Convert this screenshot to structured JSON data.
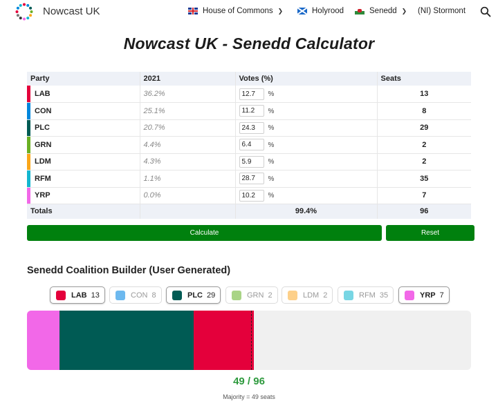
{
  "header": {
    "brand": "Nowcast UK",
    "nav": [
      {
        "label": "House of Commons",
        "flag": "uk-flag",
        "has_dropdown": true
      },
      {
        "label": "Holyrood",
        "flag": "scotland-flag",
        "has_dropdown": false
      },
      {
        "label": "Senedd",
        "flag": "wales-flag",
        "has_dropdown": true
      },
      {
        "label": "(NI) Stormont",
        "flag": "",
        "has_dropdown": false
      }
    ],
    "search_icon": "search-icon"
  },
  "title": "Nowcast UK - Senedd Calculator",
  "table": {
    "headers": {
      "party": "Party",
      "prev": "2021",
      "votes": "Votes (%)",
      "seats": "Seats"
    },
    "rows": [
      {
        "party": "LAB",
        "color": "#e4003b",
        "prev": "36.2%",
        "votes": "12.7",
        "pct": "%",
        "seats": "13"
      },
      {
        "party": "CON",
        "color": "#0087dc",
        "prev": "25.1%",
        "votes": "11.2",
        "pct": "%",
        "seats": "8"
      },
      {
        "party": "PLC",
        "color": "#005b54",
        "prev": "20.7%",
        "votes": "24.3",
        "pct": "%",
        "seats": "29"
      },
      {
        "party": "GRN",
        "color": "#6ab023",
        "prev": "4.4%",
        "votes": "6.4",
        "pct": "%",
        "seats": "2"
      },
      {
        "party": "LDM",
        "color": "#faa61a",
        "prev": "4.3%",
        "votes": "5.9",
        "pct": "%",
        "seats": "2"
      },
      {
        "party": "RFM",
        "color": "#12b6cf",
        "prev": "1.1%",
        "votes": "28.7",
        "pct": "%",
        "seats": "35"
      },
      {
        "party": "YRP",
        "color": "#f268e8",
        "prev": "0.0%",
        "votes": "10.2",
        "pct": "%",
        "seats": "7"
      }
    ],
    "totals": {
      "label": "Totals",
      "votes": "99.4%",
      "seats": "96"
    }
  },
  "buttons": {
    "calculate": "Calculate",
    "reset": "Reset"
  },
  "coalition": {
    "title": "Senedd Coalition Builder (User Generated)",
    "chips": [
      {
        "party": "LAB",
        "seats": "13",
        "color": "#e4003b",
        "selected": true
      },
      {
        "party": "CON",
        "seats": "8",
        "color": "#6db9ef",
        "selected": false
      },
      {
        "party": "PLC",
        "seats": "29",
        "color": "#005b54",
        "selected": true
      },
      {
        "party": "GRN",
        "seats": "2",
        "color": "#a9d486",
        "selected": false
      },
      {
        "party": "LDM",
        "seats": "2",
        "color": "#fdd08a",
        "selected": false
      },
      {
        "party": "RFM",
        "seats": "35",
        "color": "#78d6e4",
        "selected": false
      },
      {
        "party": "YRP",
        "seats": "7",
        "color": "#f268e8",
        "selected": true
      }
    ],
    "bar_order": [
      "YRP",
      "PLC",
      "LAB"
    ],
    "bar_colors": {
      "YRP": "#f268e8",
      "PLC": "#005b54",
      "LAB": "#e4003b"
    },
    "bar_seats": {
      "YRP": 7,
      "PLC": 29,
      "LAB": 13
    },
    "total_seats": 96,
    "majority_seats": 49,
    "result": "49 / 96",
    "majority_label": "Majority = 49 seats"
  }
}
